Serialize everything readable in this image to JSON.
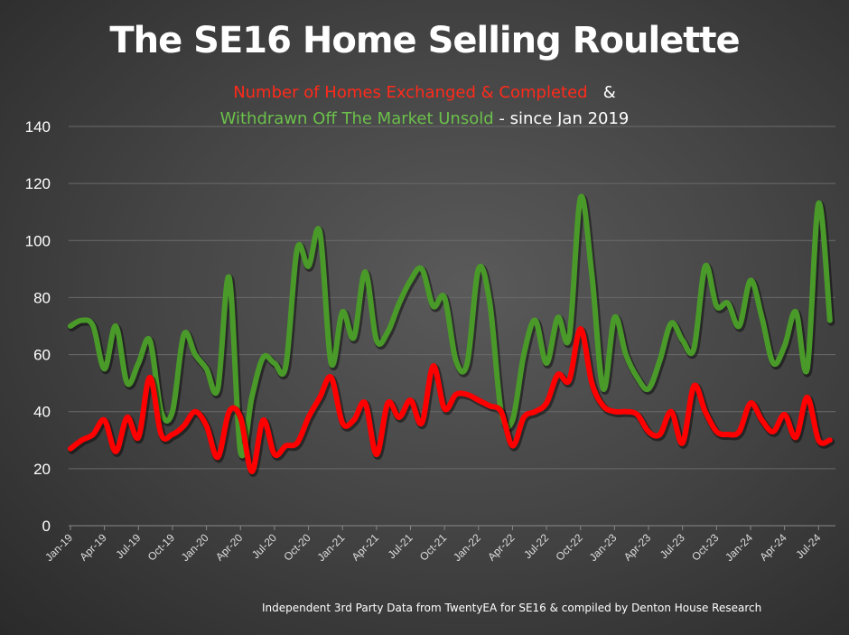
{
  "chart_data": {
    "type": "line",
    "title": "The SE16 Home Selling Roulette",
    "subtitle_line1": {
      "red_text": "Number of Homes Exchanged & Completed",
      "white_text": "&"
    },
    "subtitle_line2": {
      "green_text": "Withdrawn Off The Market Unsold",
      "white_text": "- since Jan 2019"
    },
    "footnote": "Independent 3rd Party Data from TwentyEA for SE16 & compiled by Denton House Research",
    "ylim": [
      0,
      140
    ],
    "yticks": [
      0,
      20,
      40,
      60,
      80,
      100,
      120,
      140
    ],
    "grid": true,
    "x_tick_labels": [
      "Jan-19",
      "Apr-19",
      "Jul-19",
      "Oct-19",
      "Jan-20",
      "Apr-20",
      "Jul-20",
      "Oct-20",
      "Jan-21",
      "Apr-21",
      "Jul-21",
      "Oct-21",
      "Jan-22",
      "Apr-22",
      "Jul-22",
      "Oct-22",
      "Jan-23",
      "Apr-23",
      "Jul-23",
      "Oct-23",
      "Jan-24",
      "Apr-24",
      "Jul-24"
    ],
    "x_start": "Jan-19",
    "x_end": "Aug-24",
    "series": [
      {
        "name": "Withdrawn Off The Market Unsold",
        "color": "#4a9a2a",
        "values": [
          70,
          72,
          70,
          55,
          70,
          50,
          57,
          65,
          40,
          40,
          67,
          60,
          55,
          48,
          87,
          26,
          45,
          59,
          57,
          56,
          97,
          91,
          103,
          57,
          75,
          66,
          89,
          65,
          68,
          78,
          86,
          90,
          77,
          80,
          58,
          57,
          90,
          78,
          40,
          37,
          60,
          72,
          57,
          73,
          66,
          115,
          88,
          48,
          73,
          60,
          52,
          48,
          58,
          71,
          65,
          62,
          91,
          77,
          78,
          70,
          86,
          73,
          57,
          63,
          75,
          55,
          113,
          72
        ]
      },
      {
        "name": "Number of Homes Exchanged & Completed",
        "color": "#ff0000",
        "values": [
          27,
          30,
          32,
          37,
          26,
          38,
          31,
          52,
          32,
          32,
          35,
          40,
          35,
          24,
          40,
          38,
          19,
          37,
          25,
          28,
          29,
          38,
          45,
          52,
          36,
          37,
          43,
          25,
          43,
          38,
          44,
          36,
          56,
          41,
          46,
          46,
          44,
          42,
          40,
          28,
          38,
          40,
          43,
          53,
          51,
          69,
          50,
          42,
          40,
          40,
          39,
          33,
          32,
          40,
          29,
          49,
          40,
          33,
          32,
          33,
          43,
          37,
          33,
          39,
          31,
          45,
          30,
          30
        ]
      }
    ]
  }
}
